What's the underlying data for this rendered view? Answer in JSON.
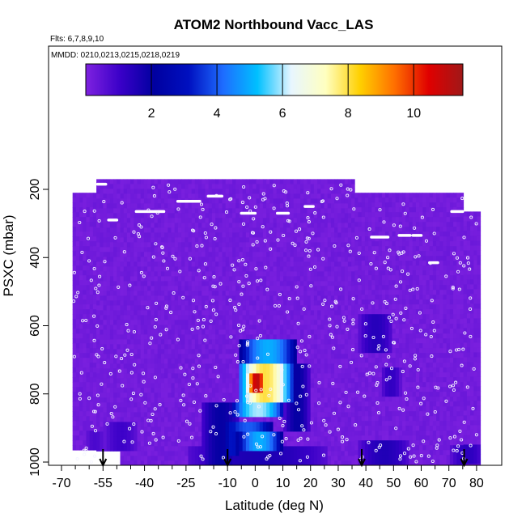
{
  "chart_data": {
    "type": "heatmap",
    "title": "ATOM2 Northbound Vacc_LAS",
    "flights_text": "Flts: 6,7,8,9,10",
    "dates_text": "MMDD: 0210,0213,0215,0218,0219",
    "xlabel": "Latitude (deg N)",
    "ylabel": "PSXC (mbar)",
    "xlim": [
      -70,
      85
    ],
    "ylim": [
      1000,
      40
    ],
    "x_ticks": [
      "-70",
      "-55",
      "-40",
      "-25",
      "-10",
      "0",
      "10",
      "20",
      "30",
      "40",
      "50",
      "60",
      "70",
      "80"
    ],
    "x_tick_values": [
      -70,
      -55,
      -40,
      -25,
      -10,
      0,
      10,
      20,
      30,
      40,
      50,
      60,
      70,
      80
    ],
    "y_ticks": [
      "200",
      "400",
      "600",
      "800",
      "1000"
    ],
    "y_tick_values": [
      200,
      400,
      600,
      800,
      1000
    ],
    "colorbar": {
      "range": [
        0,
        11.5
      ],
      "tick_labels": [
        "2",
        "4",
        "6",
        "8",
        "10"
      ],
      "tick_values": [
        2,
        4,
        6,
        8,
        10
      ],
      "colors": [
        "#7f22e0",
        "#3a00c8",
        "#0000a0",
        "#0010c0",
        "#1e6cff",
        "#00c0ff",
        "#e8f6ff",
        "#ffffc0",
        "#ffd000",
        "#ff7000",
        "#e00000",
        "#a01818"
      ]
    },
    "background_value": 0.2,
    "field_blobs": [
      {
        "lat": [
          -55,
          -43
        ],
        "p": [
          880,
          960
        ],
        "v": 1.0
      },
      {
        "lat": [
          -62,
          -55
        ],
        "p": [
          900,
          960
        ],
        "v": 0.8
      },
      {
        "lat": [
          -20,
          -6
        ],
        "p": [
          820,
          1000
        ],
        "v": 2.0
      },
      {
        "lat": [
          -12,
          -6
        ],
        "p": [
          870,
          980
        ],
        "v": 3.2
      },
      {
        "lat": [
          -6,
          14
        ],
        "p": [
          640,
          700
        ],
        "v": 5.0
      },
      {
        "lat": [
          -7,
          13
        ],
        "p": [
          700,
          820
        ],
        "v": 8.0
      },
      {
        "lat": [
          -4,
          4
        ],
        "p": [
          730,
          790
        ],
        "v": 11.0
      },
      {
        "lat": [
          -9,
          10
        ],
        "p": [
          820,
          860
        ],
        "v": 6.0
      },
      {
        "lat": [
          -12,
          6
        ],
        "p": [
          870,
          910
        ],
        "v": 4.0
      },
      {
        "lat": [
          -7,
          9
        ],
        "p": [
          910,
          960
        ],
        "v": 5.0
      },
      {
        "lat": [
          10,
          19
        ],
        "p": [
          700,
          900
        ],
        "v": 2.0
      },
      {
        "lat": [
          -25,
          25
        ],
        "p": [
          940,
          1000
        ],
        "v": 1.6
      },
      {
        "lat": [
          37,
          49
        ],
        "p": [
          560,
          680
        ],
        "v": 1.4
      },
      {
        "lat": [
          45,
          52
        ],
        "p": [
          720,
          800
        ],
        "v": 1.2
      },
      {
        "lat": [
          37,
          55
        ],
        "p": [
          930,
          1000
        ],
        "v": 1.5
      },
      {
        "lat": [
          70,
          82
        ],
        "p": [
          940,
          1000
        ],
        "v": 1.3
      }
    ],
    "profile_arrows_lat": [
      -55,
      -10,
      38.5,
      75.5
    ],
    "data_top_blocks": [
      {
        "lat": [
          -66,
          -58
        ],
        "p": 210
      },
      {
        "lat": [
          -58,
          35
        ],
        "p": 170
      },
      {
        "lat": [
          35,
          75
        ],
        "p": 210
      },
      {
        "lat": [
          75,
          81
        ],
        "p": 265
      }
    ],
    "flight_level_tracks": [
      {
        "lat": [
          -57,
          -54
        ],
        "p": 185
      },
      {
        "lat": [
          -53,
          -50
        ],
        "p": 290
      },
      {
        "lat": [
          -43,
          -33
        ],
        "p": 265
      },
      {
        "lat": [
          -28,
          -20
        ],
        "p": 235
      },
      {
        "lat": [
          -17,
          -12
        ],
        "p": 220
      },
      {
        "lat": [
          -5,
          0
        ],
        "p": 270
      },
      {
        "lat": [
          8,
          12
        ],
        "p": 270
      },
      {
        "lat": [
          18,
          21
        ],
        "p": 250
      },
      {
        "lat": [
          42,
          48
        ],
        "p": 340
      },
      {
        "lat": [
          52,
          56
        ],
        "p": 335
      },
      {
        "lat": [
          57,
          60
        ],
        "p": 335
      },
      {
        "lat": [
          63,
          66
        ],
        "p": 415
      },
      {
        "lat": [
          71,
          75
        ],
        "p": 265
      }
    ]
  }
}
